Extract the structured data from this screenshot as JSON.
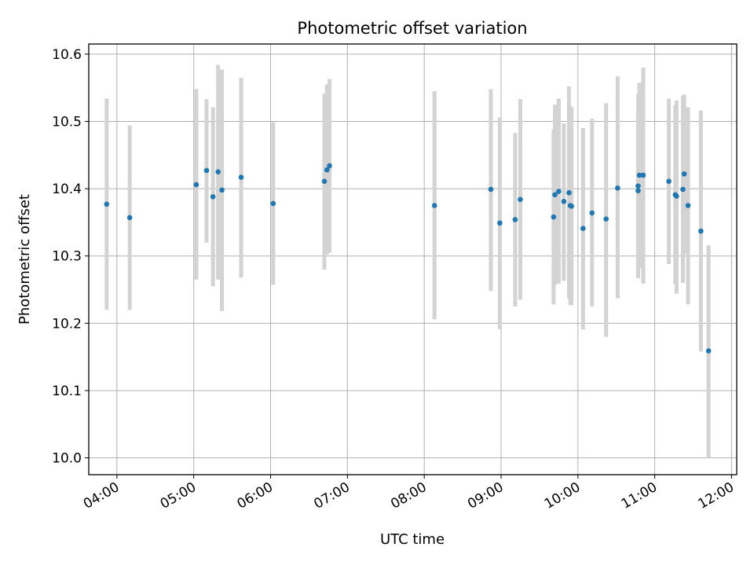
{
  "chart_data": {
    "type": "scatter",
    "title": "Photometric offset variation",
    "xlabel": "UTC time",
    "ylabel": "Photometric offset",
    "x_ticks": [
      "04:00",
      "05:00",
      "06:00",
      "07:00",
      "08:00",
      "09:00",
      "10:00",
      "11:00",
      "12:00"
    ],
    "y_ticks": [
      "10.0",
      "10.1",
      "10.2",
      "10.3",
      "10.4",
      "10.5",
      "10.6"
    ],
    "xlim": [
      "03:38",
      "12:04"
    ],
    "ylim": [
      9.975,
      10.615
    ],
    "grid": true,
    "marker_color": "#1f77b4",
    "errorbar_color": "#d3d3d3",
    "points": [
      {
        "x": "03:52",
        "y": 10.377,
        "ylow": 10.22,
        "yhigh": 10.534
      },
      {
        "x": "04:10",
        "y": 10.357,
        "ylow": 10.22,
        "yhigh": 10.494
      },
      {
        "x": "05:02",
        "y": 10.406,
        "ylow": 10.265,
        "yhigh": 10.548
      },
      {
        "x": "05:10",
        "y": 10.427,
        "ylow": 10.32,
        "yhigh": 10.533
      },
      {
        "x": "05:15",
        "y": 10.388,
        "ylow": 10.255,
        "yhigh": 10.521
      },
      {
        "x": "05:19",
        "y": 10.425,
        "ylow": 10.265,
        "yhigh": 10.584
      },
      {
        "x": "05:22",
        "y": 10.398,
        "ylow": 10.218,
        "yhigh": 10.577
      },
      {
        "x": "05:37",
        "y": 10.417,
        "ylow": 10.268,
        "yhigh": 10.565
      },
      {
        "x": "06:02",
        "y": 10.378,
        "ylow": 10.257,
        "yhigh": 10.499
      },
      {
        "x": "06:42",
        "y": 10.411,
        "ylow": 10.28,
        "yhigh": 10.541
      },
      {
        "x": "06:44",
        "y": 10.428,
        "ylow": 10.302,
        "yhigh": 10.555
      },
      {
        "x": "06:46",
        "y": 10.434,
        "ylow": 10.305,
        "yhigh": 10.563
      },
      {
        "x": "08:08",
        "y": 10.375,
        "ylow": 10.206,
        "yhigh": 10.545
      },
      {
        "x": "08:52",
        "y": 10.399,
        "ylow": 10.248,
        "yhigh": 10.548
      },
      {
        "x": "08:59",
        "y": 10.349,
        "ylow": 10.191,
        "yhigh": 10.506
      },
      {
        "x": "09:11",
        "y": 10.354,
        "ylow": 10.225,
        "yhigh": 10.483
      },
      {
        "x": "09:15",
        "y": 10.384,
        "ylow": 10.235,
        "yhigh": 10.533
      },
      {
        "x": "09:41",
        "y": 10.358,
        "ylow": 10.228,
        "yhigh": 10.488
      },
      {
        "x": "09:42",
        "y": 10.391,
        "ylow": 10.257,
        "yhigh": 10.525
      },
      {
        "x": "09:45",
        "y": 10.396,
        "ylow": 10.259,
        "yhigh": 10.534
      },
      {
        "x": "09:49",
        "y": 10.381,
        "ylow": 10.263,
        "yhigh": 10.497
      },
      {
        "x": "09:53",
        "y": 10.394,
        "ylow": 10.237,
        "yhigh": 10.552
      },
      {
        "x": "09:54",
        "y": 10.375,
        "ylow": 10.227,
        "yhigh": 10.523
      },
      {
        "x": "09:55",
        "y": 10.374,
        "ylow": 10.227,
        "yhigh": 10.521
      },
      {
        "x": "10:04",
        "y": 10.341,
        "ylow": 10.191,
        "yhigh": 10.49
      },
      {
        "x": "10:11",
        "y": 10.364,
        "ylow": 10.225,
        "yhigh": 10.504
      },
      {
        "x": "10:22",
        "y": 10.355,
        "ylow": 10.18,
        "yhigh": 10.527
      },
      {
        "x": "10:31",
        "y": 10.401,
        "ylow": 10.237,
        "yhigh": 10.567
      },
      {
        "x": "10:47",
        "y": 10.397,
        "ylow": 10.283,
        "yhigh": 10.511
      },
      {
        "x": "10:47",
        "y": 10.404,
        "ylow": 10.267,
        "yhigh": 10.541
      },
      {
        "x": "10:48",
        "y": 10.42,
        "ylow": 10.282,
        "yhigh": 10.557
      },
      {
        "x": "10:51",
        "y": 10.42,
        "ylow": 10.259,
        "yhigh": 10.58
      },
      {
        "x": "11:11",
        "y": 10.411,
        "ylow": 10.288,
        "yhigh": 10.534
      },
      {
        "x": "11:16",
        "y": 10.391,
        "ylow": 10.258,
        "yhigh": 10.524
      },
      {
        "x": "11:17",
        "y": 10.389,
        "ylow": 10.244,
        "yhigh": 10.531
      },
      {
        "x": "11:22",
        "y": 10.399,
        "ylow": 10.26,
        "yhigh": 10.538
      },
      {
        "x": "11:23",
        "y": 10.422,
        "ylow": 10.303,
        "yhigh": 10.54
      },
      {
        "x": "11:26",
        "y": 10.375,
        "ylow": 10.228,
        "yhigh": 10.521
      },
      {
        "x": "11:36",
        "y": 10.337,
        "ylow": 10.158,
        "yhigh": 10.516
      },
      {
        "x": "11:42",
        "y": 10.159,
        "ylow": 10.0,
        "yhigh": 10.316
      }
    ]
  }
}
